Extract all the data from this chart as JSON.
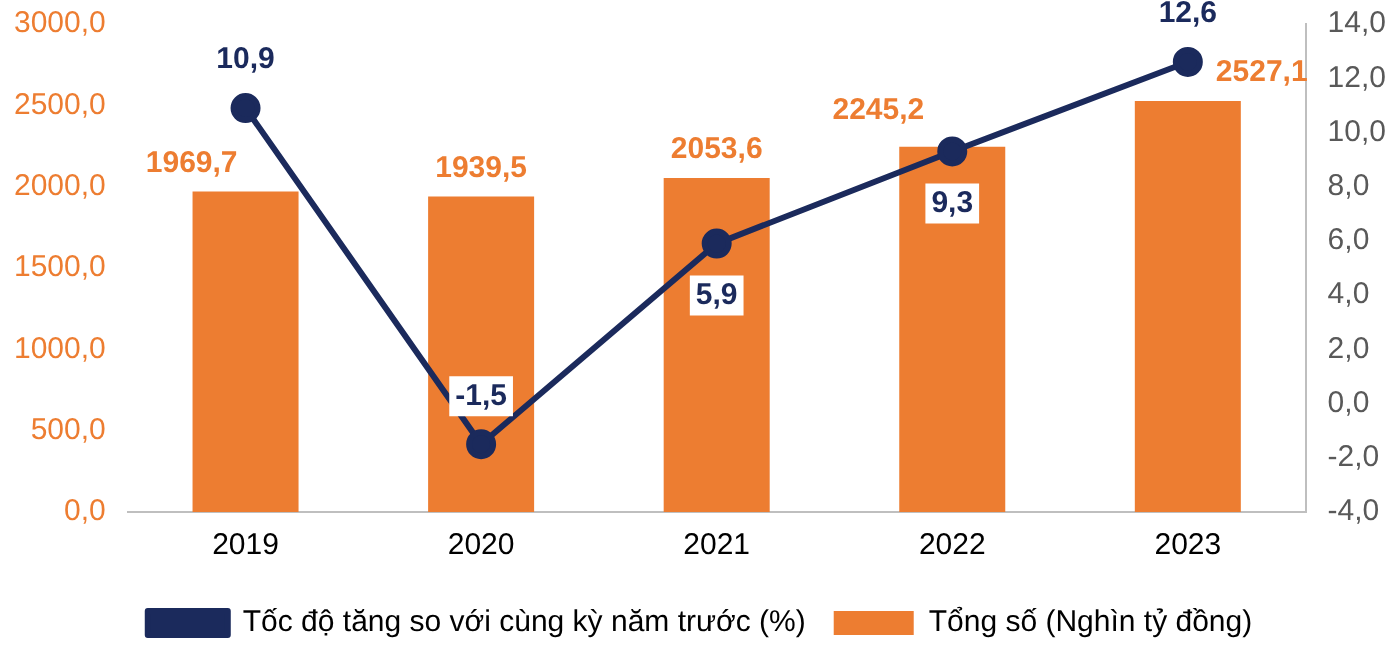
{
  "chart_data": {
    "type": "bar",
    "categories": [
      "2019",
      "2020",
      "2021",
      "2022",
      "2023"
    ],
    "series": [
      {
        "name": "Tổng số (Nghìn tỷ đồng)",
        "color": "#ed7d31",
        "values": [
          1969.7,
          1939.5,
          2053.6,
          2245.2,
          2527.1
        ],
        "value_labels": [
          "1969,7",
          "1939,5",
          "2053,6",
          "2245,2",
          "2527,1"
        ]
      },
      {
        "name": "Tốc độ tăng so với cùng kỳ năm trước (%)",
        "type": "line",
        "axis": "y2",
        "color": "#1b2a5c",
        "marker": "circle",
        "values": [
          10.9,
          -1.5,
          5.9,
          9.3,
          12.6
        ],
        "value_labels": [
          "10,9",
          "-1,5",
          "5,9",
          "9,3",
          "12,6"
        ]
      }
    ],
    "ylim": [
      0,
      3000
    ],
    "yticks": [
      {
        "value": 0,
        "label": "0,0"
      },
      {
        "value": 500,
        "label": "500,0"
      },
      {
        "value": 1000,
        "label": "1000,0"
      },
      {
        "value": 1500,
        "label": "1500,0"
      },
      {
        "value": 2000,
        "label": "2000,0"
      },
      {
        "value": 2500,
        "label": "2500,0"
      },
      {
        "value": 3000,
        "label": "3000,0"
      }
    ],
    "y2lim": [
      -4,
      14
    ],
    "y2ticks": [
      {
        "value": -4,
        "label": "-4,0"
      },
      {
        "value": -2,
        "label": "-2,0"
      },
      {
        "value": 0,
        "label": "0,0"
      },
      {
        "value": 2,
        "label": "2,0"
      },
      {
        "value": 4,
        "label": "4,0"
      },
      {
        "value": 6,
        "label": "6,0"
      },
      {
        "value": 8,
        "label": "8,0"
      },
      {
        "value": 10,
        "label": "10,0"
      },
      {
        "value": 12,
        "label": "12,0"
      },
      {
        "value": 14,
        "label": "14,0"
      }
    ],
    "grid": false,
    "legend": "bottom"
  }
}
